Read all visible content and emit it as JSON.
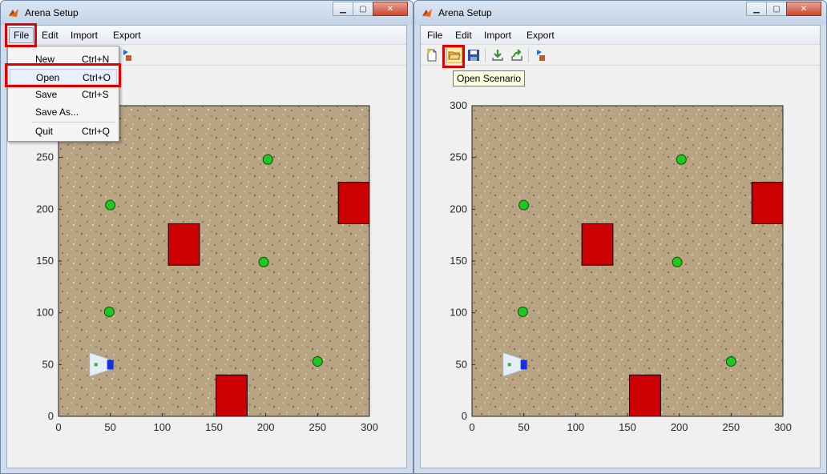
{
  "left_window": {
    "title": "Arena Setup",
    "menu": [
      "File",
      "Edit",
      "Import",
      "Export"
    ],
    "file_menu": [
      {
        "label": "New",
        "shortcut": "Ctrl+N"
      },
      {
        "label": "Open",
        "shortcut": "Ctrl+O"
      },
      {
        "label": "Save",
        "shortcut": "Ctrl+S"
      },
      {
        "label": "Save As...",
        "shortcut": ""
      },
      {
        "label": "Quit",
        "shortcut": "Ctrl+Q"
      }
    ]
  },
  "right_window": {
    "title": "Arena Setup",
    "menu": [
      "File",
      "Edit",
      "Import",
      "Export"
    ],
    "toolbar_icons": [
      "new-file-icon",
      "open-folder-icon",
      "save-disk-icon",
      "import-arrow-icon",
      "export-arrow-icon",
      "run-flag-icon"
    ],
    "tooltip": "Open Scenario"
  },
  "highlight_color": "#e00000",
  "chart_data": {
    "type": "scatter",
    "title": "",
    "xlabel": "",
    "ylabel": "",
    "xlim": [
      0,
      300
    ],
    "ylim": [
      0,
      300
    ],
    "xticks": [
      "0",
      "50",
      "100",
      "150",
      "200",
      "250",
      "300"
    ],
    "yticks": [
      "0",
      "50",
      "100",
      "150",
      "200",
      "250",
      "300"
    ],
    "background": "sand texture image",
    "targets": {
      "color": "#1ec81e",
      "points": [
        [
          202,
          248
        ],
        [
          50,
          204
        ],
        [
          198,
          149
        ],
        [
          49,
          101
        ],
        [
          250,
          53
        ]
      ]
    },
    "obstacles": {
      "color": "#cc0000",
      "rects": [
        {
          "x": 106,
          "y": 146,
          "w": 30,
          "h": 40
        },
        {
          "x": 270,
          "y": 186,
          "w": 30,
          "h": 40
        },
        {
          "x": 152,
          "y": 0,
          "w": 30,
          "h": 40
        }
      ]
    },
    "robot": {
      "x": 50,
      "y": 50
    }
  }
}
